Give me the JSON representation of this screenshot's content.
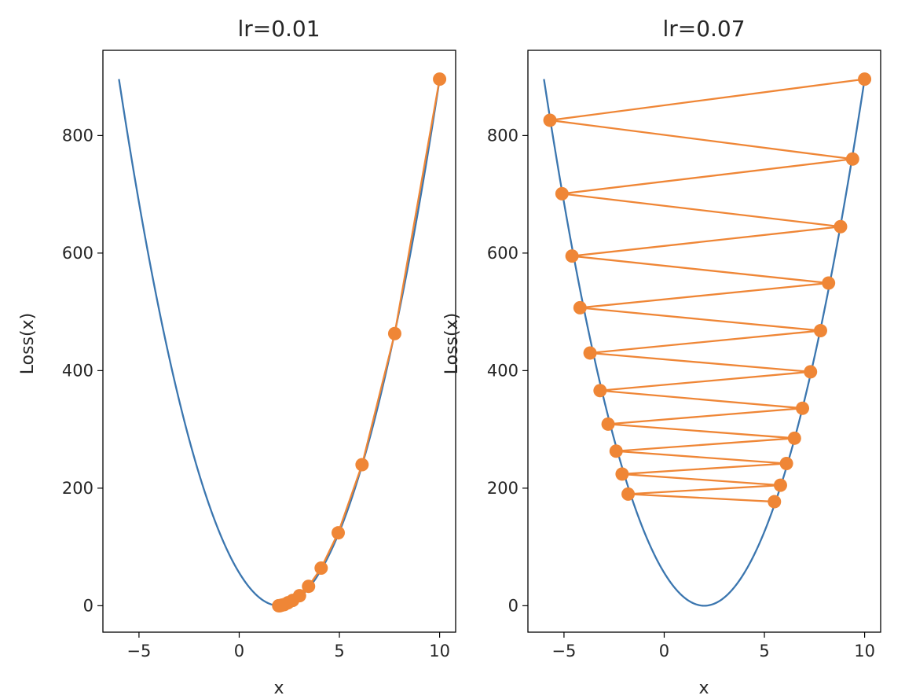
{
  "colors": {
    "curve": "#3b76af",
    "path": "#ef8636",
    "axes": "#000000",
    "text": "#262626"
  },
  "chart_data": [
    {
      "type": "line",
      "title": "lr=0.01",
      "xlabel": "x",
      "ylabel": "Loss(x)",
      "xlim": [
        -6.8,
        10.8
      ],
      "ylim": [
        -45,
        945
      ],
      "xticks": [
        -5,
        0,
        5,
        10
      ],
      "xtick_labels": [
        "−5",
        "0",
        "5",
        "10"
      ],
      "yticks": [
        0,
        200,
        400,
        600,
        800
      ],
      "ytick_labels": [
        "0",
        "200",
        "400",
        "600",
        "800"
      ],
      "grid": false,
      "series": [
        {
          "type": "line",
          "function": "loss",
          "x_range": [
            -6,
            10
          ],
          "curve": {
            "a": 14,
            "center": 2
          }
        },
        {
          "type": "line",
          "marker": "circle",
          "x": [
            10.0,
            7.76,
            6.13,
            4.94,
            4.09,
            3.46,
            3.01,
            2.67,
            2.43,
            2.25,
            2.13,
            2.03,
            1.97
          ],
          "y": [
            896,
            463,
            240,
            124,
            64,
            33,
            17,
            9,
            5,
            2,
            1,
            0,
            0
          ]
        }
      ]
    },
    {
      "type": "line",
      "title": "lr=0.07",
      "xlabel": "x",
      "ylabel": "Loss(x)",
      "xlim": [
        -6.8,
        10.8
      ],
      "ylim": [
        -45,
        945
      ],
      "xticks": [
        -5,
        0,
        5,
        10
      ],
      "xtick_labels": [
        "−5",
        "0",
        "5",
        "10"
      ],
      "yticks": [
        0,
        200,
        400,
        600,
        800
      ],
      "ytick_labels": [
        "0",
        "200",
        "400",
        "600",
        "800"
      ],
      "grid": false,
      "series": [
        {
          "type": "line",
          "function": "loss",
          "x_range": [
            -6,
            10
          ],
          "curve": {
            "a": 14,
            "center": 2
          }
        },
        {
          "type": "line",
          "marker": "circle",
          "x": [
            10.0,
            -5.7,
            9.4,
            -5.1,
            8.8,
            -4.6,
            8.2,
            -4.2,
            7.8,
            -3.7,
            7.3,
            -3.2,
            6.9,
            -2.8,
            6.5,
            -2.4,
            6.1,
            -2.1,
            5.8,
            -1.8,
            5.5
          ],
          "y": [
            896,
            826,
            760,
            701,
            645,
            595,
            549,
            507,
            468,
            430,
            398,
            366,
            336,
            309,
            285,
            263,
            242,
            224,
            205,
            190,
            177
          ]
        }
      ]
    }
  ]
}
